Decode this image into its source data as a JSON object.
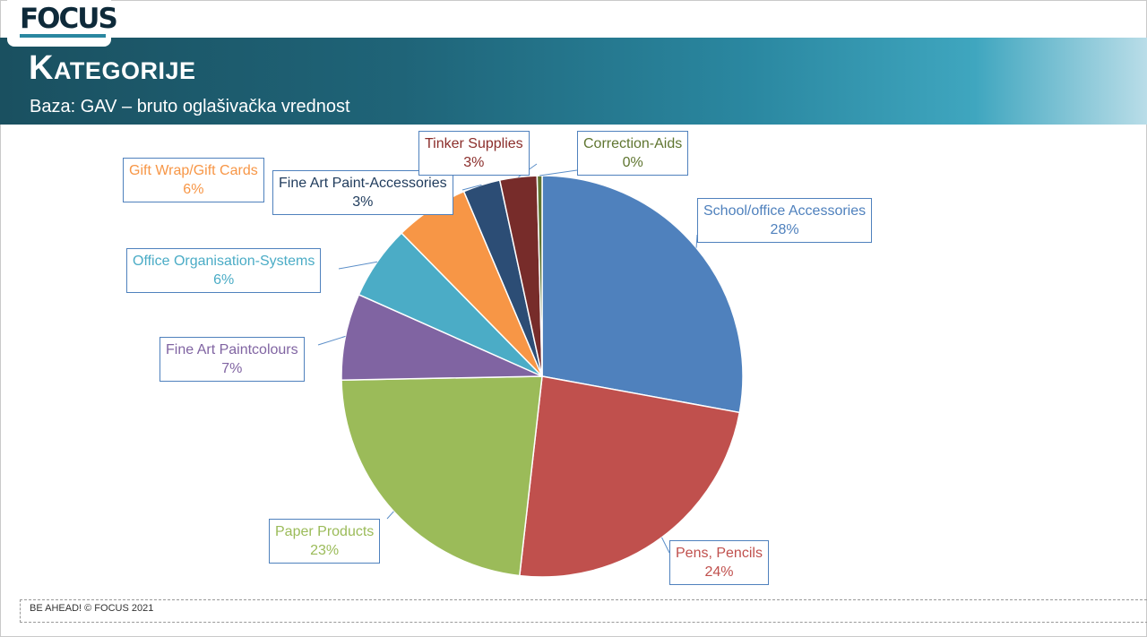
{
  "logo": {
    "text": "FOCUS"
  },
  "header": {
    "title": "Kategorije",
    "subtitle": "Baza: GAV – bruto oglašivačka vrednost"
  },
  "footer": {
    "text": "BE AHEAD! © FOCUS 2021"
  },
  "chart_data": {
    "type": "pie",
    "title": "",
    "slices": [
      {
        "name": "School/office Accessories",
        "value": 28,
        "label": "28%",
        "color": "#4f81bd"
      },
      {
        "name": "Pens, Pencils",
        "value": 24,
        "label": "24%",
        "color": "#c0504d"
      },
      {
        "name": "Paper Products",
        "value": 23,
        "label": "23%",
        "color": "#9bbb59"
      },
      {
        "name": "Fine Art Paintcolours",
        "value": 7,
        "label": "7%",
        "color": "#8064a2"
      },
      {
        "name": "Office Organisation-Systems",
        "value": 6,
        "label": "6%",
        "color": "#4bacc6"
      },
      {
        "name": "Gift Wrap/Gift Cards",
        "value": 6,
        "label": "6%",
        "color": "#f79646"
      },
      {
        "name": "Fine Art Paint-Accessories",
        "value": 3,
        "label": "3%",
        "color": "#2c4d75"
      },
      {
        "name": "Tinker Supplies",
        "value": 3,
        "label": "3%",
        "color": "#772c2a"
      },
      {
        "name": "Correction-Aids",
        "value": 0.4,
        "label": "0%",
        "color": "#5f7530"
      }
    ]
  }
}
